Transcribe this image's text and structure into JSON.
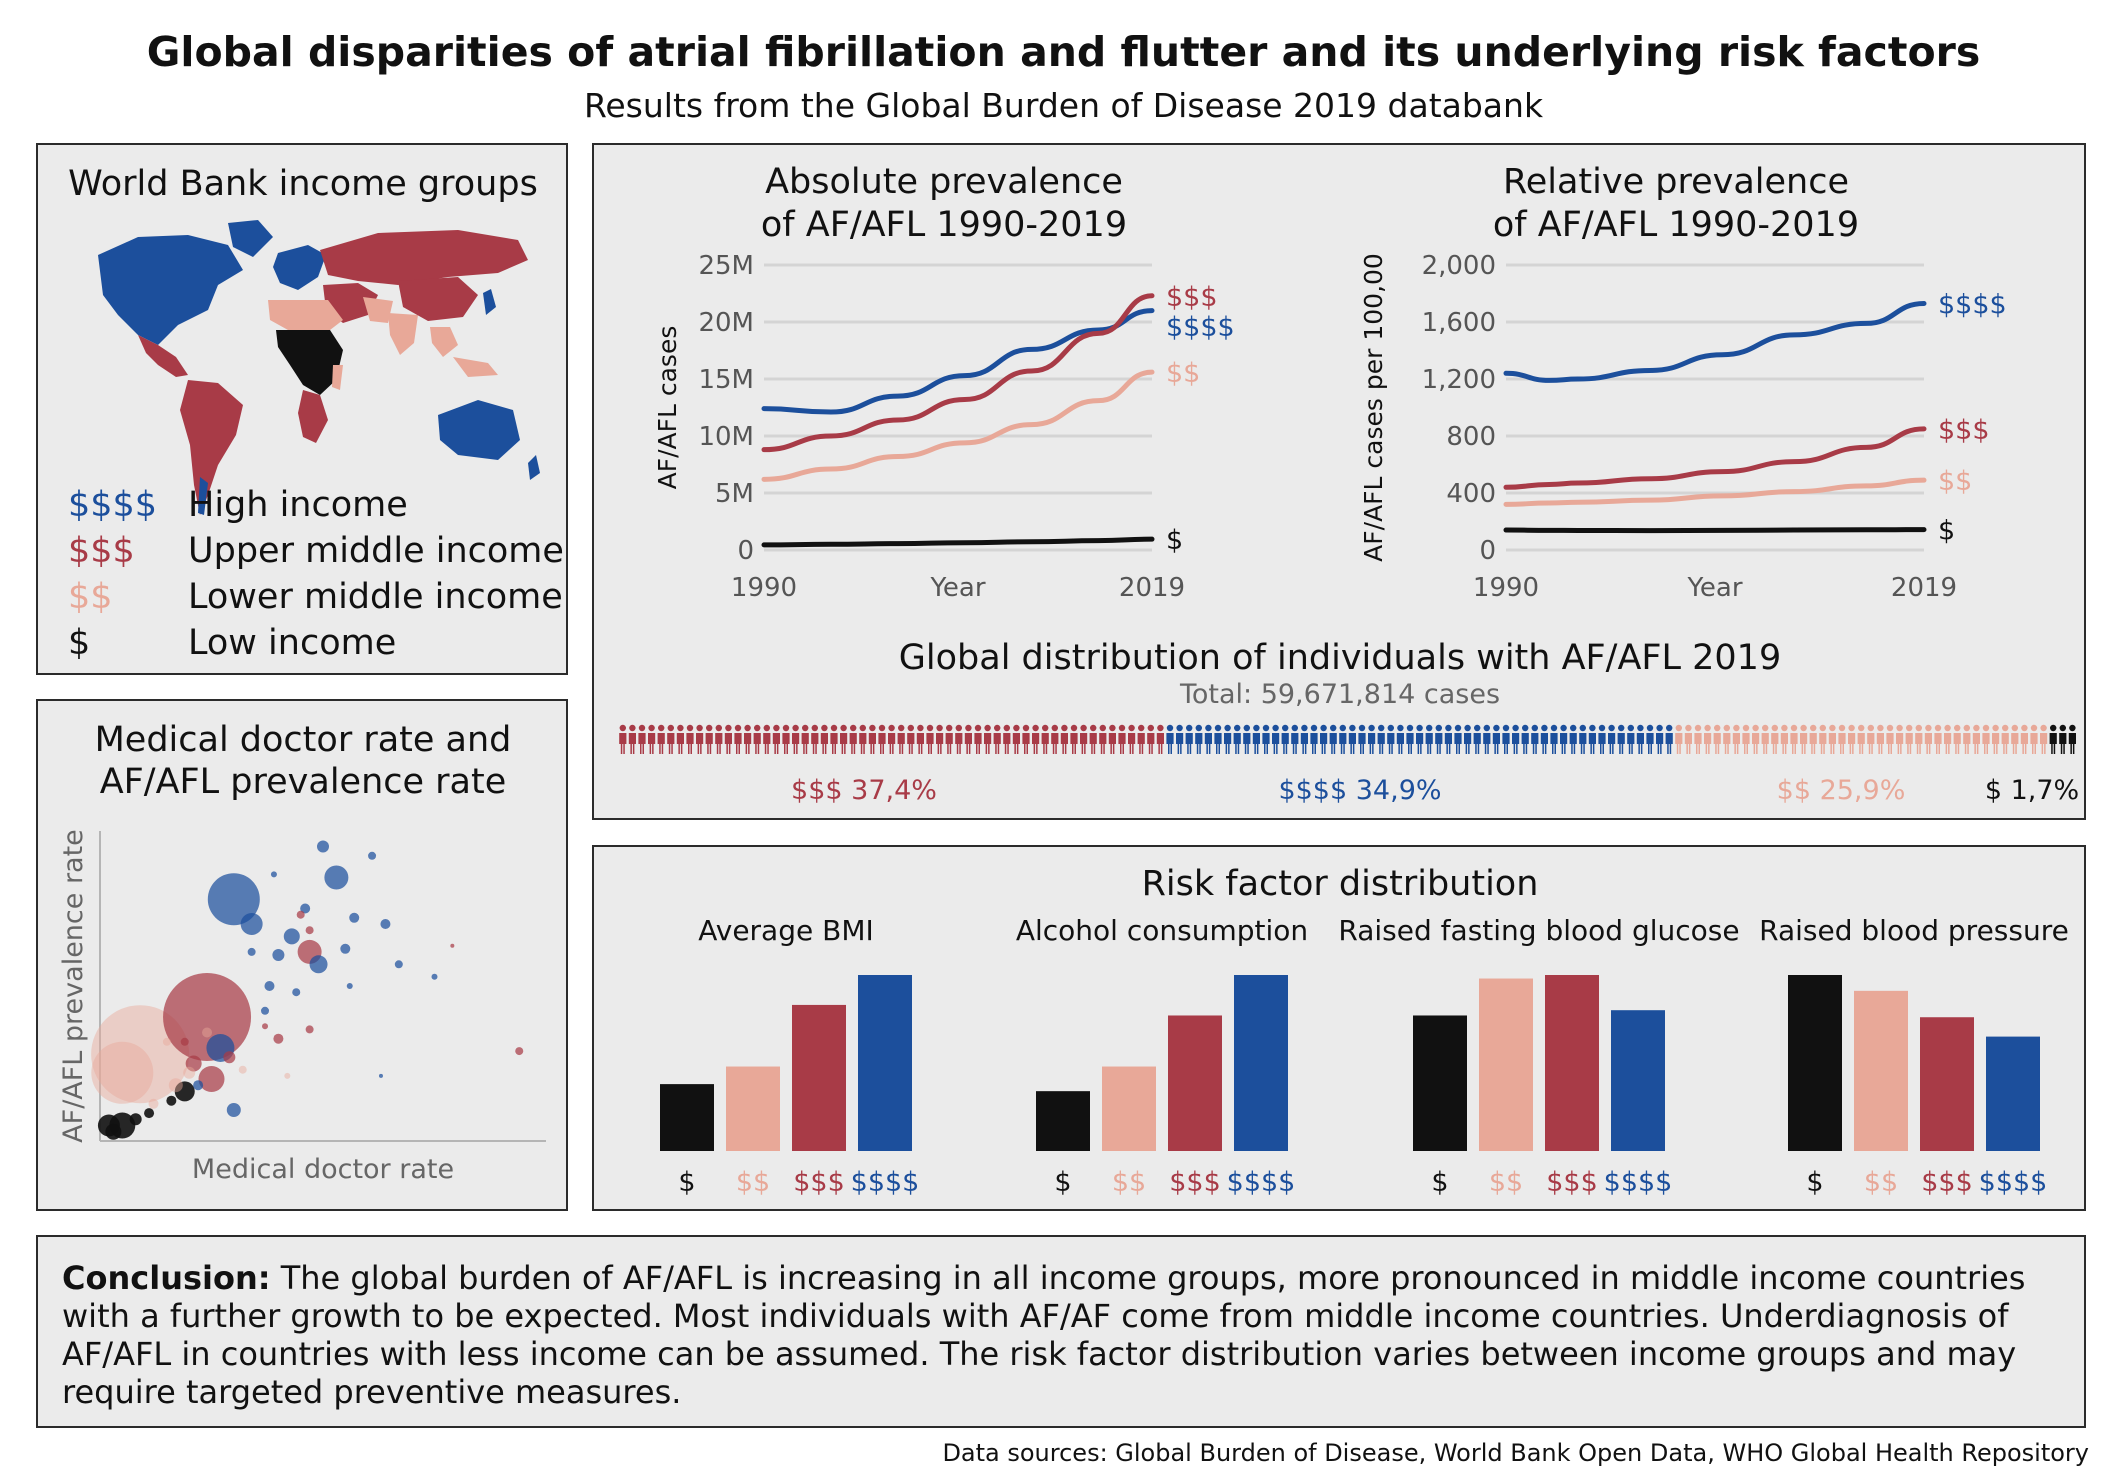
{
  "title": "Global disparities of atrial fibrillation and flutter and its underlying risk factors",
  "subtitle": "Results from the Global Burden of Disease 2019 databank",
  "colors": {
    "high": "#1c4f9c",
    "upper": "#a83b47",
    "lower": "#e8a898",
    "low": "#111111",
    "panel": "#ebebeb",
    "grid": "#d4d4d4"
  },
  "income_panel": {
    "title": "World Bank income groups",
    "legend": [
      {
        "symbol": "$$$$",
        "label": "High income",
        "color": "#1c4f9c"
      },
      {
        "symbol": "$$$",
        "label": "Upper middle income",
        "color": "#a83b47"
      },
      {
        "symbol": "$$",
        "label": "Lower middle income",
        "color": "#e8a898"
      },
      {
        "symbol": "$",
        "label": "Low income",
        "color": "#111111"
      }
    ]
  },
  "doctor_panel": {
    "title_line1": "Medical doctor rate and",
    "title_line2": "AF/AFL prevalence rate",
    "xlabel": "Medical doctor rate",
    "ylabel": "AF/AFL prevalence rate"
  },
  "conclusion": {
    "bold": "Conclusion:",
    "text": "The global burden of AF/AFL is increasing in all income groups, more pronounced in middle income countries with a further growth to be expected. Most individuals with AF/AF come from middle income countries. Underdiagnosis of AF/AFL in countries with less income can be assumed. The risk factor distribution varies between income groups and may require targeted preventive measures."
  },
  "sources": "Data sources: Global Burden of Disease, World Bank Open Data, WHO Global Health Repository",
  "chart_data": [
    {
      "type": "line",
      "title": "Absolute prevalence of AF/AFL 1990-2019",
      "title_line1": "Absolute prevalence",
      "title_line2": "of AF/AFL 1990-2019",
      "xlabel": "Year",
      "ylabel": "AF/AFL cases",
      "x_ticks": [
        "1990",
        "2019"
      ],
      "y_ticks": [
        "0",
        "5M",
        "10M",
        "15M",
        "20M",
        "25M"
      ],
      "ylim": [
        0,
        25000000
      ],
      "xlim": [
        1990,
        2019
      ],
      "grid": true,
      "x": [
        1990,
        1995,
        2000,
        2005,
        2010,
        2015,
        2019
      ],
      "series": [
        {
          "name": "$$$$",
          "color": "#1c4f9c",
          "values": [
            12400000,
            12100000,
            13500000,
            15300000,
            17600000,
            19300000,
            21000000
          ]
        },
        {
          "name": "$$$",
          "color": "#a83b47",
          "values": [
            8800000,
            10000000,
            11400000,
            13200000,
            15700000,
            19000000,
            22300000
          ]
        },
        {
          "name": "$$",
          "color": "#e8a898",
          "values": [
            6200000,
            7100000,
            8200000,
            9400000,
            11000000,
            13100000,
            15600000
          ]
        },
        {
          "name": "$",
          "color": "#111111",
          "values": [
            450000,
            500000,
            560000,
            640000,
            720000,
            820000,
            950000
          ]
        }
      ]
    },
    {
      "type": "line",
      "title": "Relative prevalence of AF/AFL 1990-2019",
      "title_line1": "Relative prevalence",
      "title_line2": "of AF/AFL 1990-2019",
      "xlabel": "Year",
      "ylabel": "AF/AFL cases per 100,00",
      "x_ticks": [
        "1990",
        "2019"
      ],
      "y_ticks": [
        "0",
        "400",
        "800",
        "1,200",
        "1,600",
        "2,000"
      ],
      "ylim": [
        0,
        2000
      ],
      "xlim": [
        1990,
        2019
      ],
      "grid": true,
      "x": [
        1990,
        1993,
        1995,
        2000,
        2005,
        2010,
        2015,
        2019
      ],
      "series": [
        {
          "name": "$$$$",
          "color": "#1c4f9c",
          "values": [
            1240,
            1190,
            1200,
            1260,
            1370,
            1510,
            1590,
            1730
          ]
        },
        {
          "name": "$$$",
          "color": "#a83b47",
          "values": [
            440,
            460,
            470,
            500,
            550,
            620,
            720,
            850
          ]
        },
        {
          "name": "$$",
          "color": "#e8a898",
          "values": [
            320,
            330,
            335,
            350,
            380,
            410,
            450,
            490
          ]
        },
        {
          "name": "$",
          "color": "#111111",
          "values": [
            140,
            138,
            137,
            136,
            138,
            140,
            142,
            143
          ]
        }
      ]
    },
    {
      "type": "bar",
      "title": "Global distribution of individuals with AF/AFL 2019",
      "subtitle": "Total: 59,671,814 cases",
      "categories": [
        "$$$",
        "$$$$",
        "$$",
        "$"
      ],
      "values": [
        37.4,
        34.9,
        25.9,
        1.7
      ],
      "labels": [
        "$$$ 37,4%",
        "$$$$ 34,9%",
        "$$ 25,9%",
        "$ 1,7%"
      ],
      "colors": [
        "#a83b47",
        "#1c4f9c",
        "#e8a898",
        "#111111"
      ]
    },
    {
      "type": "bar",
      "title": "Risk factor distribution",
      "categories": [
        "$",
        "$$",
        "$$$",
        "$$$$"
      ],
      "category_colors": [
        "#111111",
        "#e8a898",
        "#a83b47",
        "#1c4f9c"
      ],
      "groups": [
        {
          "name": "Average BMI",
          "values": [
            38,
            48,
            83,
            100
          ]
        },
        {
          "name": "Alcohol consumption",
          "values": [
            34,
            48,
            77,
            100
          ]
        },
        {
          "name": "Raised fasting blood glucose",
          "values": [
            77,
            98,
            100,
            80
          ]
        },
        {
          "name": "Raised blood pressure",
          "values": [
            100,
            91,
            76,
            65
          ]
        }
      ]
    },
    {
      "type": "scatter",
      "title": "Medical doctor rate and AF/AFL prevalence rate",
      "xlabel": "Medical doctor rate",
      "ylabel": "AF/AFL prevalence rate",
      "xlim": [
        0,
        100
      ],
      "ylim": [
        0,
        100
      ],
      "points": [
        {
          "x": 30,
          "y": 78,
          "r": 26,
          "g": "$$$$"
        },
        {
          "x": 34,
          "y": 70,
          "r": 11,
          "g": "$$$$"
        },
        {
          "x": 53,
          "y": 85,
          "r": 12,
          "g": "$$$$"
        },
        {
          "x": 50,
          "y": 95,
          "r": 6,
          "g": "$$$$"
        },
        {
          "x": 61,
          "y": 92,
          "r": 4,
          "g": "$$$$"
        },
        {
          "x": 43,
          "y": 66,
          "r": 8,
          "g": "$$$$"
        },
        {
          "x": 40,
          "y": 60,
          "r": 6,
          "g": "$$$$"
        },
        {
          "x": 46,
          "y": 75,
          "r": 5,
          "g": "$$$$"
        },
        {
          "x": 57,
          "y": 72,
          "r": 5,
          "g": "$$$$"
        },
        {
          "x": 64,
          "y": 70,
          "r": 5,
          "g": "$$$$"
        },
        {
          "x": 49,
          "y": 57,
          "r": 9,
          "g": "$$$$"
        },
        {
          "x": 55,
          "y": 62,
          "r": 5,
          "g": "$$$$"
        },
        {
          "x": 44,
          "y": 48,
          "r": 4,
          "g": "$$$$"
        },
        {
          "x": 38,
          "y": 50,
          "r": 5,
          "g": "$$$$"
        },
        {
          "x": 27,
          "y": 30,
          "r": 14,
          "g": "$$$$"
        },
        {
          "x": 30,
          "y": 10,
          "r": 7,
          "g": "$$$$"
        },
        {
          "x": 37,
          "y": 42,
          "r": 4,
          "g": "$$$$"
        },
        {
          "x": 22,
          "y": 18,
          "r": 5,
          "g": "$$$$"
        },
        {
          "x": 67,
          "y": 57,
          "r": 4,
          "g": "$$$$"
        },
        {
          "x": 75,
          "y": 53,
          "r": 3,
          "g": "$$$$"
        },
        {
          "x": 56,
          "y": 50,
          "r": 3,
          "g": "$$$$"
        },
        {
          "x": 63,
          "y": 21,
          "r": 2,
          "g": "$$$$"
        },
        {
          "x": 34,
          "y": 61,
          "r": 4,
          "g": "$$$$"
        },
        {
          "x": 39,
          "y": 86,
          "r": 3,
          "g": "$$$$"
        },
        {
          "x": 24,
          "y": 40,
          "r": 44,
          "g": "$$$"
        },
        {
          "x": 47,
          "y": 61,
          "r": 12,
          "g": "$$$"
        },
        {
          "x": 47,
          "y": 68,
          "r": 4,
          "g": "$$$"
        },
        {
          "x": 45,
          "y": 73,
          "r": 4,
          "g": "$$$"
        },
        {
          "x": 25,
          "y": 20,
          "r": 13,
          "g": "$$$"
        },
        {
          "x": 21,
          "y": 25,
          "r": 8,
          "g": "$$$"
        },
        {
          "x": 29,
          "y": 27,
          "r": 6,
          "g": "$$$"
        },
        {
          "x": 40,
          "y": 33,
          "r": 5,
          "g": "$$$"
        },
        {
          "x": 47,
          "y": 36,
          "r": 4,
          "g": "$$$"
        },
        {
          "x": 37,
          "y": 37,
          "r": 3,
          "g": "$$$"
        },
        {
          "x": 94,
          "y": 29,
          "r": 4,
          "g": "$$$"
        },
        {
          "x": 79,
          "y": 63,
          "r": 2,
          "g": "$$$"
        },
        {
          "x": 19,
          "y": 32,
          "r": 4,
          "g": "$$$"
        },
        {
          "x": 9,
          "y": 28,
          "r": 49,
          "g": "$$"
        },
        {
          "x": 5,
          "y": 22,
          "r": 31,
          "g": "$$"
        },
        {
          "x": 17,
          "y": 18,
          "r": 7,
          "g": "$$"
        },
        {
          "x": 20,
          "y": 22,
          "r": 6,
          "g": "$$"
        },
        {
          "x": 12,
          "y": 12,
          "r": 5,
          "g": "$$"
        },
        {
          "x": 24,
          "y": 35,
          "r": 5,
          "g": "$$"
        },
        {
          "x": 32,
          "y": 23,
          "r": 4,
          "g": "$$"
        },
        {
          "x": 42,
          "y": 21,
          "r": 3,
          "g": "$$"
        },
        {
          "x": 15,
          "y": 32,
          "r": 4,
          "g": "$$"
        },
        {
          "x": 2,
          "y": 5,
          "r": 11,
          "g": "$"
        },
        {
          "x": 5,
          "y": 5,
          "r": 13,
          "g": "$"
        },
        {
          "x": 3,
          "y": 3,
          "r": 8,
          "g": "$"
        },
        {
          "x": 19,
          "y": 16,
          "r": 10,
          "g": "$"
        },
        {
          "x": 16,
          "y": 13,
          "r": 5,
          "g": "$"
        },
        {
          "x": 8,
          "y": 7,
          "r": 6,
          "g": "$"
        },
        {
          "x": 11,
          "y": 9,
          "r": 5,
          "g": "$"
        }
      ]
    }
  ]
}
